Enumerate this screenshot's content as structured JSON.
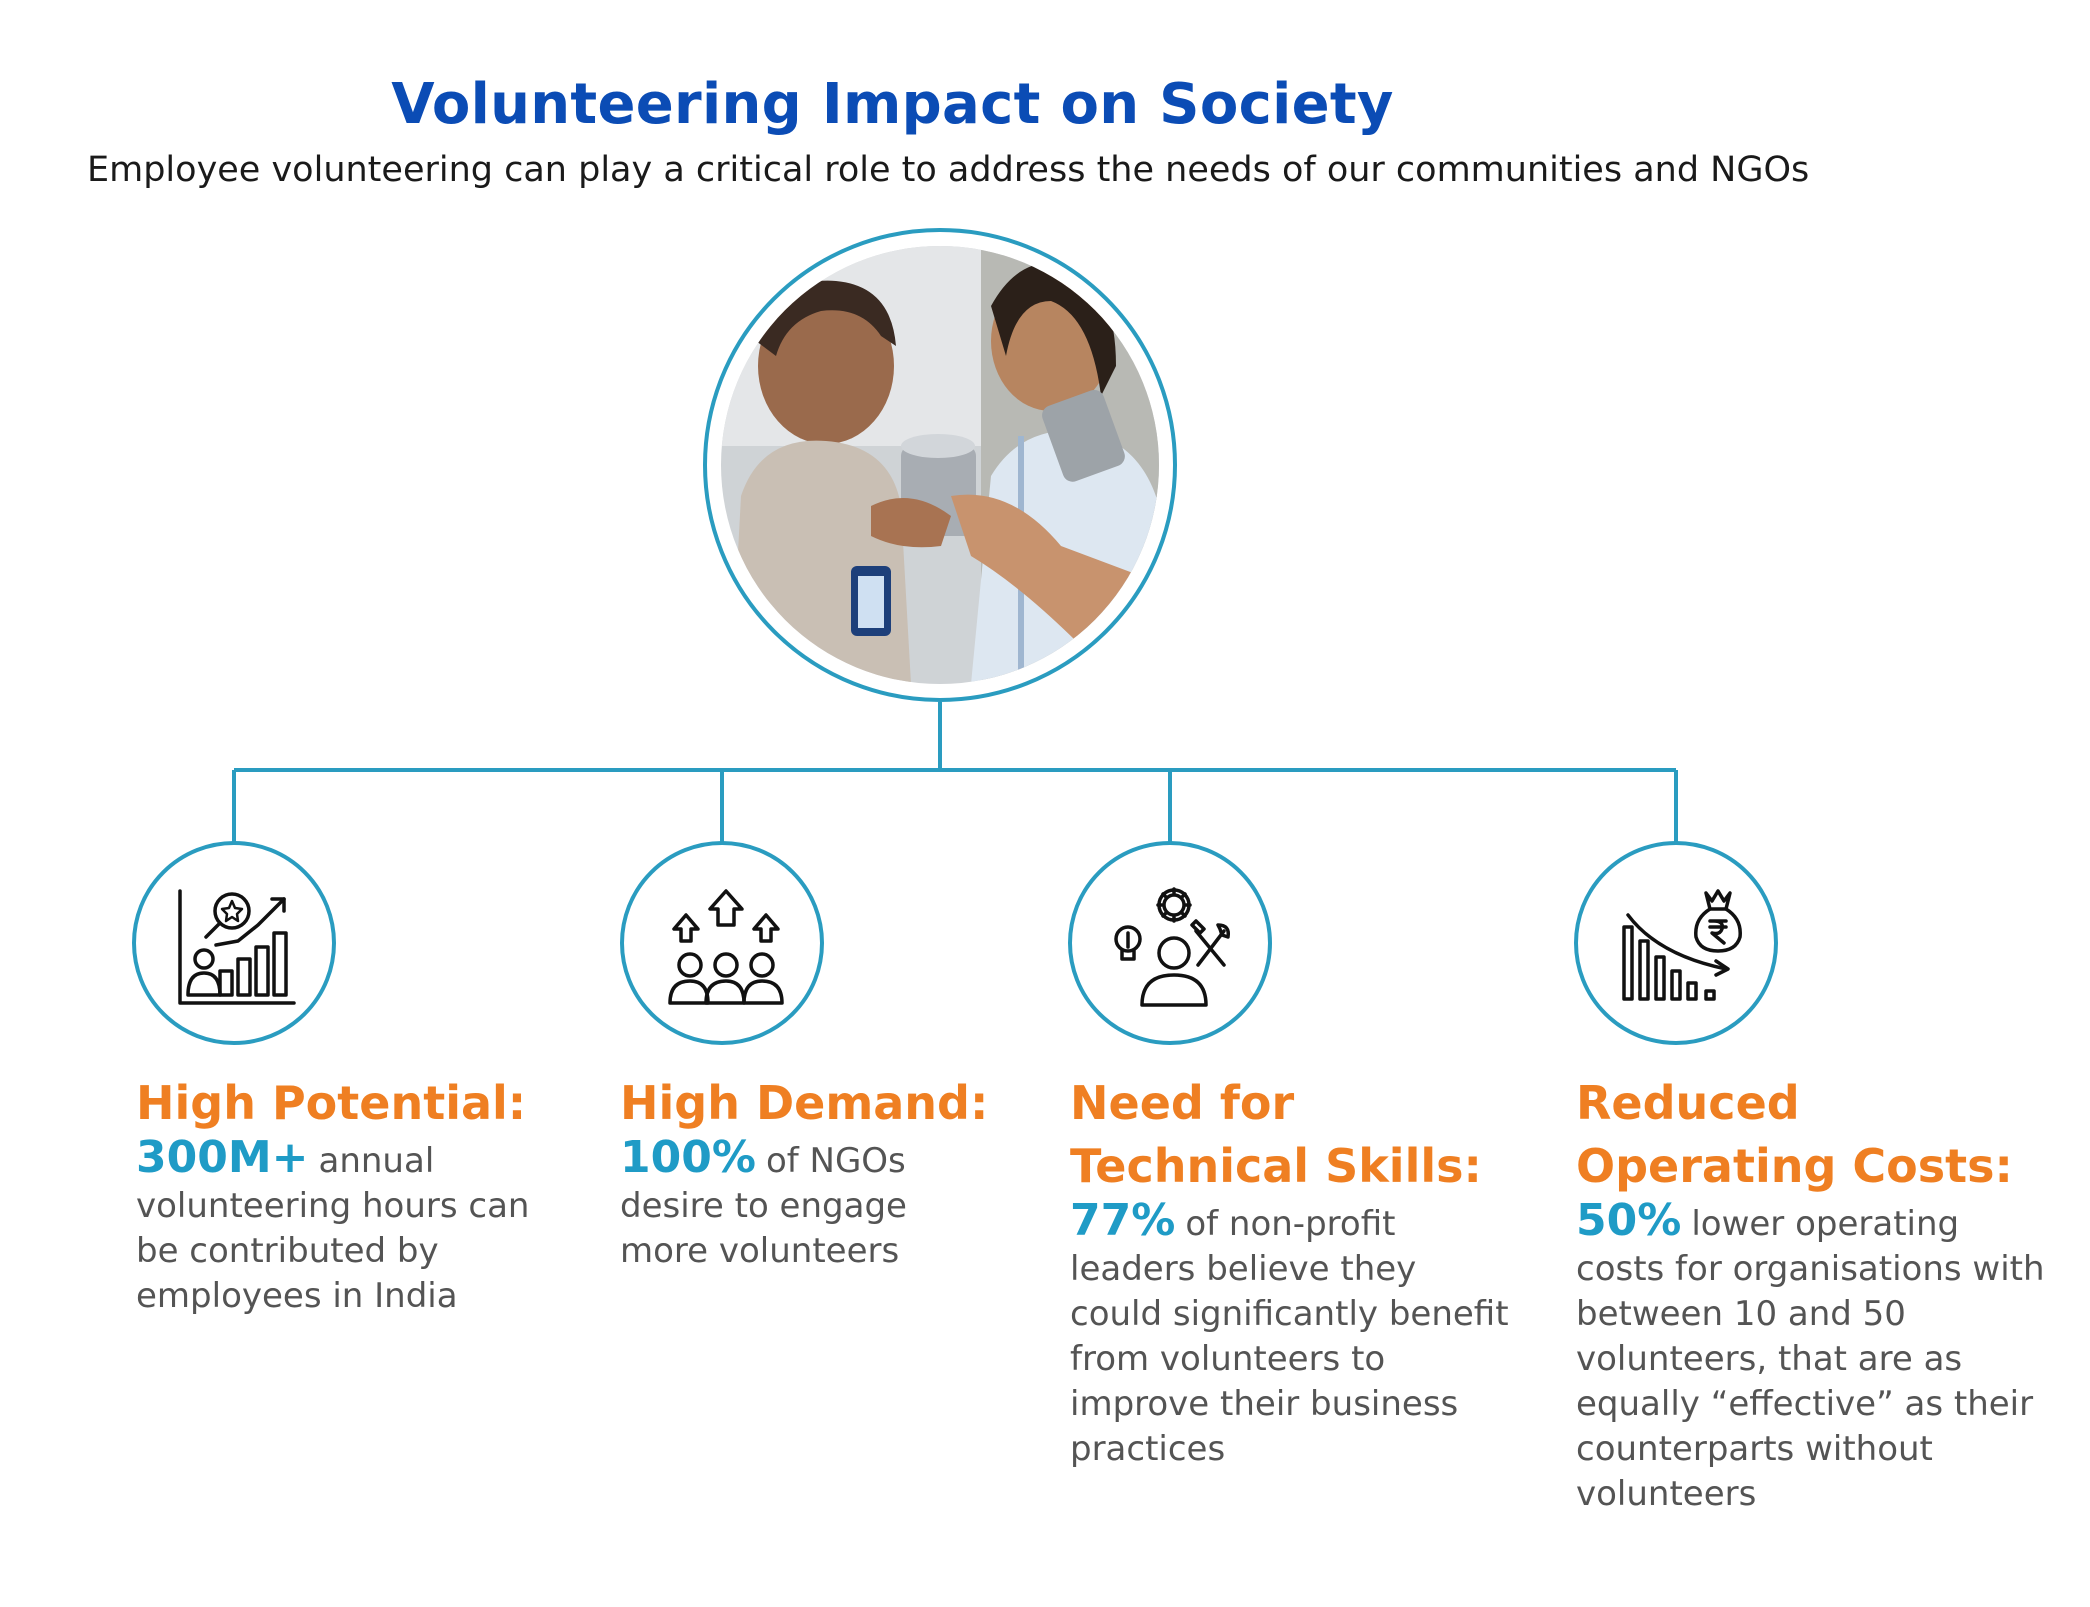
{
  "header": {
    "title": "Volunteering Impact on Society",
    "subtitle": "Employee volunteering can play a critical role to address the needs of our communities and NGOs"
  },
  "hero_image": {
    "description_name": "volunteers-photo"
  },
  "cards": [
    {
      "icon": "growth-chart-person-icon",
      "heading": "High Potential:",
      "stat": "300M+",
      "text": "annual volunteering hours can be contributed by employees in India"
    },
    {
      "icon": "group-arrows-up-icon",
      "heading": "High Demand:",
      "stat": "100%",
      "text": "of NGOs desire to engage more volunteers"
    },
    {
      "icon": "person-skills-tools-icon",
      "heading": "Need for Technical Skills:",
      "stat": "77%",
      "text": "of non-profit leaders believe they could significantly benefit from volunteers to improve their business practices"
    },
    {
      "icon": "declining-cost-rupee-icon",
      "heading": "Reduced Operating Costs:",
      "stat": "50%",
      "text": "lower operating costs for organisations with between 10 and 50 volunteers, that are as equally “effective” as their counterparts without volunteers"
    }
  ],
  "colors": {
    "title": "#0b4cb5",
    "accent_line": "#2a9cc0",
    "heading": "#ef7f22",
    "stat": "#1f9bc6",
    "body_text": "#545454"
  }
}
